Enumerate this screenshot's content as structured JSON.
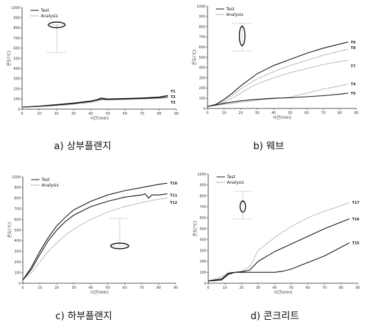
{
  "chart_data": [
    {
      "type": "line",
      "caption": "a) 상부플랜지",
      "xlabel": "시간(min)",
      "ylabel": "온도(℃)",
      "xlim": [
        0,
        90
      ],
      "ylim": [
        0,
        1000
      ],
      "xticks": [
        "0",
        "10",
        "20",
        "30",
        "40",
        "50",
        "60",
        "70",
        "80",
        "90"
      ],
      "yticks": [
        "0",
        "100",
        "200",
        "300",
        "400",
        "500",
        "600",
        "700",
        "800",
        "900",
        "1000"
      ],
      "legend": [
        "Test",
        "Analysis"
      ],
      "series": [
        {
          "name": "T1",
          "style": "solid",
          "x": [
            0,
            10,
            20,
            30,
            40,
            44,
            46,
            50,
            60,
            70,
            80,
            85
          ],
          "y": [
            20,
            30,
            45,
            60,
            80,
            95,
            110,
            100,
            105,
            110,
            120,
            135
          ]
        },
        {
          "name": "T2",
          "style": "solid",
          "x": [
            0,
            10,
            20,
            30,
            40,
            44,
            46,
            50,
            60,
            70,
            80,
            85
          ],
          "y": [
            20,
            28,
            40,
            55,
            75,
            90,
            100,
            95,
            100,
            105,
            112,
            122
          ]
        },
        {
          "name": "T3",
          "style": "dotted",
          "x": [
            0,
            10,
            20,
            30,
            40,
            44,
            46,
            50,
            60,
            70,
            80,
            85
          ],
          "y": [
            20,
            25,
            35,
            48,
            65,
            78,
            88,
            90,
            95,
            100,
            105,
            110
          ]
        }
      ]
    },
    {
      "type": "line",
      "caption": "b) 웨브",
      "xlabel": "시간(min)",
      "ylabel": "온도(℃)",
      "xlim": [
        0,
        90
      ],
      "ylim": [
        0,
        1000
      ],
      "xticks": [
        "0",
        "10",
        "20",
        "30",
        "40",
        "50",
        "60",
        "70",
        "80",
        "90"
      ],
      "yticks": [
        "0",
        "100",
        "200",
        "300",
        "400",
        "500",
        "600",
        "700",
        "800",
        "900",
        "1000"
      ],
      "legend": [
        "Test",
        "Analysis"
      ],
      "series": [
        {
          "name": "T6",
          "style": "solid",
          "x": [
            0,
            5,
            10,
            15,
            20,
            25,
            30,
            40,
            50,
            60,
            70,
            80,
            85
          ],
          "y": [
            20,
            40,
            90,
            150,
            220,
            280,
            340,
            420,
            480,
            540,
            590,
            630,
            650
          ]
        },
        {
          "name": "T8",
          "style": "dotted",
          "x": [
            0,
            5,
            10,
            15,
            20,
            25,
            30,
            40,
            50,
            60,
            70,
            80,
            85
          ],
          "y": [
            20,
            35,
            75,
            130,
            190,
            240,
            290,
            360,
            420,
            470,
            520,
            560,
            580
          ]
        },
        {
          "name": "T7",
          "style": "dotted",
          "x": [
            0,
            5,
            10,
            15,
            20,
            25,
            30,
            40,
            50,
            60,
            70,
            80,
            85
          ],
          "y": [
            20,
            30,
            60,
            100,
            150,
            200,
            240,
            300,
            350,
            390,
            430,
            460,
            470
          ]
        },
        {
          "name": "T4",
          "style": "dotted",
          "x": [
            0,
            10,
            20,
            30,
            35,
            40,
            50,
            60,
            70,
            80,
            85
          ],
          "y": [
            20,
            40,
            60,
            80,
            90,
            95,
            110,
            150,
            190,
            220,
            240
          ]
        },
        {
          "name": "T5",
          "style": "solid",
          "x": [
            0,
            10,
            20,
            30,
            35,
            40,
            50,
            60,
            70,
            80,
            85
          ],
          "y": [
            20,
            50,
            75,
            90,
            95,
            100,
            105,
            115,
            125,
            140,
            150
          ]
        }
      ]
    },
    {
      "type": "line",
      "caption": "c) 하부플랜지",
      "xlabel": "시간(min)",
      "ylabel": "온도(℃)",
      "xlim": [
        0,
        90
      ],
      "ylim": [
        0,
        1000
      ],
      "xticks": [
        "0",
        "10",
        "20",
        "30",
        "40",
        "50",
        "60",
        "70",
        "80",
        "90"
      ],
      "yticks": [
        "0",
        "100",
        "200",
        "300",
        "400",
        "500",
        "600",
        "700",
        "800",
        "900",
        "1000"
      ],
      "legend": [
        "Test",
        "Analysis"
      ],
      "series": [
        {
          "name": "T10",
          "style": "solid",
          "x": [
            0,
            5,
            10,
            15,
            20,
            25,
            30,
            40,
            50,
            60,
            70,
            80,
            85
          ],
          "y": [
            30,
            150,
            300,
            430,
            540,
            620,
            690,
            770,
            830,
            870,
            900,
            930,
            940
          ]
        },
        {
          "name": "T11",
          "style": "solid",
          "x": [
            0,
            5,
            10,
            15,
            20,
            25,
            30,
            40,
            50,
            60,
            70,
            72,
            74,
            76,
            80,
            85
          ],
          "y": [
            30,
            130,
            270,
            400,
            500,
            580,
            640,
            720,
            770,
            810,
            830,
            840,
            800,
            830,
            830,
            840
          ]
        },
        {
          "name": "T12",
          "style": "dotted",
          "x": [
            0,
            5,
            10,
            15,
            20,
            25,
            30,
            40,
            50,
            60,
            70,
            80,
            85
          ],
          "y": [
            30,
            100,
            200,
            300,
            380,
            450,
            510,
            600,
            670,
            720,
            760,
            790,
            800
          ]
        }
      ]
    },
    {
      "type": "line",
      "caption": "d) 콘크리트",
      "xlabel": "시간(min)",
      "ylabel": "온도(℃)",
      "xlim": [
        0,
        90
      ],
      "ylim": [
        0,
        1000
      ],
      "xticks": [
        "0",
        "10",
        "20",
        "30",
        "40",
        "50",
        "60",
        "70",
        "80",
        "90"
      ],
      "yticks": [
        "0",
        "100",
        "200",
        "300",
        "400",
        "500",
        "600",
        "700",
        "800",
        "900",
        "1000"
      ],
      "legend": [
        "Test",
        "Analysis"
      ],
      "series": [
        {
          "name": "T17",
          "style": "dotted",
          "x": [
            0,
            8,
            12,
            16,
            20,
            25,
            30,
            40,
            50,
            60,
            70,
            80,
            85
          ],
          "y": [
            20,
            60,
            100,
            100,
            110,
            150,
            300,
            420,
            520,
            600,
            660,
            710,
            740
          ]
        },
        {
          "name": "T16",
          "style": "solid",
          "x": [
            0,
            8,
            12,
            16,
            20,
            25,
            30,
            40,
            50,
            60,
            70,
            80,
            85
          ],
          "y": [
            20,
            40,
            90,
            100,
            105,
            120,
            200,
            290,
            360,
            430,
            500,
            560,
            590
          ]
        },
        {
          "name": "T15",
          "style": "solid",
          "x": [
            0,
            8,
            12,
            16,
            20,
            30,
            40,
            45,
            50,
            60,
            70,
            80,
            85
          ],
          "y": [
            20,
            30,
            80,
            100,
            100,
            100,
            100,
            110,
            130,
            190,
            250,
            330,
            370
          ]
        }
      ]
    }
  ]
}
